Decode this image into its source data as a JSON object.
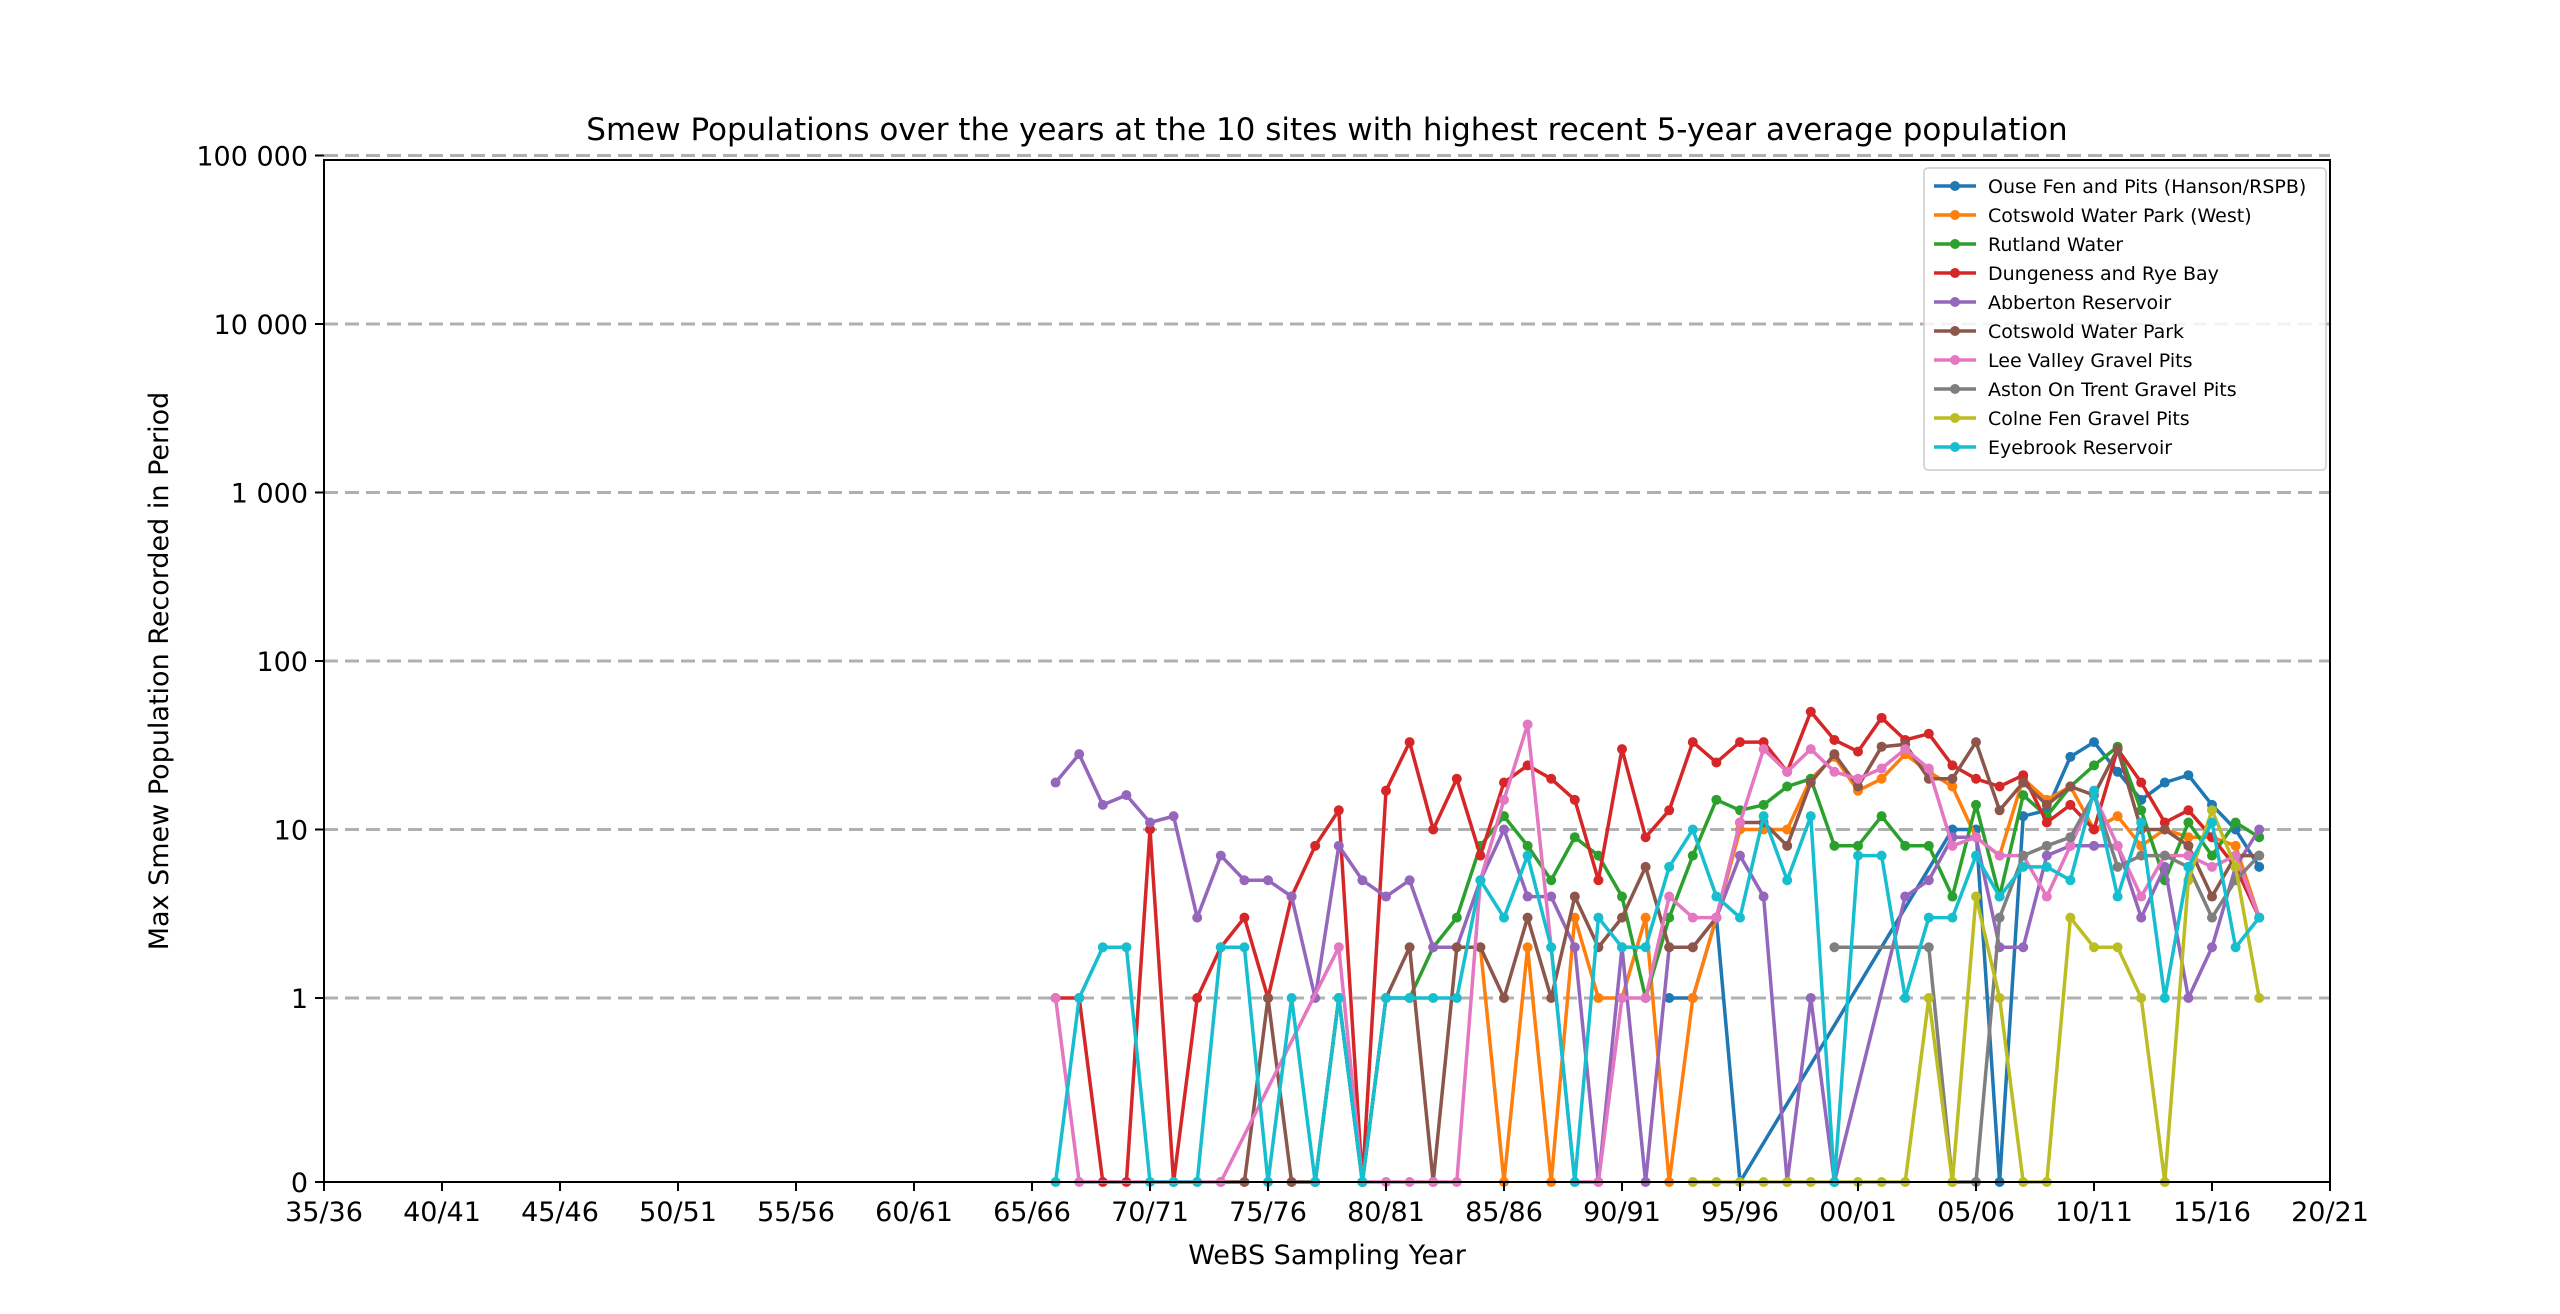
{
  "chart_data": {
    "type": "line",
    "title": "Smew Populations over the years at the 10 sites with highest recent 5-year average population",
    "xlabel": "WeBS Sampling Year",
    "ylabel": "Max Smew Population Recorded in Period",
    "yscale": "symlog",
    "xlim": [
      1935,
      2020
    ],
    "ylim": [
      0,
      100000
    ],
    "xticks": [
      {
        "value": 1935,
        "label": "35/36"
      },
      {
        "value": 1940,
        "label": "40/41"
      },
      {
        "value": 1945,
        "label": "45/46"
      },
      {
        "value": 1950,
        "label": "50/51"
      },
      {
        "value": 1955,
        "label": "55/56"
      },
      {
        "value": 1960,
        "label": "60/61"
      },
      {
        "value": 1965,
        "label": "65/66"
      },
      {
        "value": 1970,
        "label": "70/71"
      },
      {
        "value": 1975,
        "label": "75/76"
      },
      {
        "value": 1980,
        "label": "80/81"
      },
      {
        "value": 1985,
        "label": "85/86"
      },
      {
        "value": 1990,
        "label": "90/91"
      },
      {
        "value": 1995,
        "label": "95/96"
      },
      {
        "value": 2000,
        "label": "00/01"
      },
      {
        "value": 2005,
        "label": "05/06"
      },
      {
        "value": 2010,
        "label": "10/11"
      },
      {
        "value": 2015,
        "label": "15/16"
      },
      {
        "value": 2020,
        "label": "20/21"
      }
    ],
    "yticks": [
      {
        "value": 0,
        "label": "0"
      },
      {
        "value": 1,
        "label": "1"
      },
      {
        "value": 10,
        "label": "10"
      },
      {
        "value": 100,
        "label": "100"
      },
      {
        "value": 1000,
        "label": "1 000"
      },
      {
        "value": 10000,
        "label": "10 000"
      },
      {
        "value": 100000,
        "label": "100 000"
      }
    ],
    "grid": "horizontal dashed",
    "legend_position": "top-right",
    "series": [
      {
        "name": "Ouse Fen and Pits (Hanson/RSPB)",
        "color": "#1f77b4",
        "x": [
          1992,
          1993,
          1994,
          1995,
          2004,
          2005,
          2006,
          2007,
          2008,
          2009,
          2010,
          2011,
          2012,
          2013,
          2014,
          2015,
          2016,
          2017
        ],
        "y": [
          1,
          1,
          3,
          0,
          10,
          10,
          0,
          12,
          13,
          27,
          33,
          22,
          15,
          19,
          21,
          14,
          10,
          6
        ]
      },
      {
        "name": "Cotswold Water Park (West)",
        "color": "#ff7f0e",
        "x": [
          1984,
          1985,
          1986,
          1987,
          1988,
          1989,
          1990,
          1991,
          1992,
          1993,
          1994,
          1995,
          1996,
          1997,
          1998,
          1999,
          2000,
          2001,
          2002,
          2003,
          2004,
          2005,
          2006,
          2007,
          2008,
          2009,
          2010,
          2011,
          2012,
          2013,
          2014,
          2015,
          2016,
          2017
        ],
        "y": [
          2,
          0,
          2,
          0,
          3,
          1,
          1,
          3,
          0,
          1,
          3,
          10,
          10,
          10,
          20,
          27,
          17,
          20,
          28,
          22,
          18,
          9,
          7,
          20,
          15,
          18,
          10,
          12,
          8,
          10,
          9,
          9,
          8,
          3
        ]
      },
      {
        "name": "Rutland Water",
        "color": "#2ca02c",
        "x": [
          1977,
          1978,
          1979,
          1980,
          1981,
          1982,
          1983,
          1984,
          1985,
          1986,
          1987,
          1988,
          1989,
          1990,
          1991,
          1992,
          1993,
          1994,
          1995,
          1996,
          1997,
          1998,
          1999,
          2000,
          2001,
          2002,
          2003,
          2004,
          2005,
          2006,
          2007,
          2008,
          2009,
          2010,
          2011,
          2012,
          2013,
          2014,
          2015,
          2016,
          2017
        ],
        "y": [
          0,
          1,
          0,
          1,
          1,
          2,
          3,
          8,
          12,
          8,
          5,
          9,
          7,
          4,
          1,
          3,
          7,
          15,
          13,
          14,
          18,
          20,
          8,
          8,
          12,
          8,
          8,
          4,
          14,
          4,
          16,
          12,
          18,
          24,
          31,
          13,
          5,
          11,
          7,
          11,
          9
        ]
      },
      {
        "name": "Dungeness and Rye Bay",
        "color": "#d62728",
        "x": [
          1966,
          1967,
          1968,
          1969,
          1970,
          1971,
          1972,
          1973,
          1974,
          1975,
          1976,
          1977,
          1978,
          1979,
          1980,
          1981,
          1982,
          1983,
          1984,
          1985,
          1986,
          1987,
          1988,
          1989,
          1990,
          1991,
          1992,
          1993,
          1994,
          1995,
          1996,
          1997,
          1998,
          1999,
          2000,
          2001,
          2002,
          2003,
          2004,
          2005,
          2006,
          2007,
          2008,
          2009,
          2010,
          2011,
          2012,
          2013,
          2014,
          2015,
          2016,
          2017
        ],
        "y": [
          1,
          1,
          0,
          0,
          10,
          0,
          1,
          2,
          3,
          1,
          4,
          8,
          13,
          0,
          17,
          33,
          10,
          20,
          7,
          19,
          24,
          20,
          15,
          5,
          30,
          9,
          13,
          33,
          25,
          33,
          33,
          22,
          50,
          34,
          29,
          46,
          34,
          37,
          24,
          20,
          18,
          21,
          11,
          14,
          10,
          30,
          19,
          11,
          13,
          9,
          6,
          3
        ]
      },
      {
        "name": "Abberton Reservoir",
        "color": "#9467bd",
        "x": [
          1966,
          1967,
          1968,
          1969,
          1970,
          1971,
          1972,
          1973,
          1974,
          1975,
          1976,
          1977,
          1978,
          1979,
          1980,
          1981,
          1982,
          1983,
          1984,
          1985,
          1986,
          1987,
          1988,
          1989,
          1990,
          1991,
          1992,
          1993,
          1994,
          1995,
          1996,
          1997,
          1998,
          1999,
          2002,
          2003,
          2004,
          2005,
          2006,
          2007,
          2008,
          2009,
          2010,
          2011,
          2012,
          2013,
          2014,
          2015,
          2016,
          2017
        ],
        "y": [
          19,
          28,
          14,
          16,
          11,
          12,
          3,
          7,
          5,
          5,
          4,
          1,
          8,
          5,
          4,
          5,
          2,
          2,
          5,
          10,
          4,
          4,
          2,
          0,
          2,
          0,
          2,
          2,
          3,
          7,
          4,
          0,
          1,
          0,
          4,
          5,
          9,
          9,
          2,
          2,
          7,
          8,
          8,
          8,
          3,
          6,
          1,
          2,
          6,
          10
        ]
      },
      {
        "name": "Cotswold Water Park",
        "color": "#8c564b",
        "x": [
          1973,
          1974,
          1975,
          1976,
          1977,
          1978,
          1979,
          1980,
          1981,
          1982,
          1983,
          1984,
          1985,
          1986,
          1987,
          1988,
          1989,
          1990,
          1991,
          1992,
          1993,
          1994,
          1995,
          1996,
          1997,
          1998,
          1999,
          2000,
          2001,
          2002,
          2003,
          2004,
          2005,
          2006,
          2007,
          2008,
          2009,
          2010,
          2011,
          2012,
          2013,
          2014,
          2015,
          2016,
          2017
        ],
        "y": [
          0,
          0,
          1,
          0,
          0,
          1,
          0,
          1,
          2,
          0,
          2,
          2,
          1,
          3,
          1,
          4,
          2,
          3,
          6,
          2,
          2,
          3,
          11,
          11,
          8,
          19,
          28,
          18,
          31,
          32,
          20,
          20,
          33,
          13,
          19,
          14,
          18,
          16,
          30,
          10,
          10,
          8,
          4,
          7,
          7
        ]
      },
      {
        "name": "Lee Valley Gravel Pits",
        "color": "#e377c2",
        "x": [
          1966,
          1967,
          1972,
          1973,
          1978,
          1979,
          1980,
          1981,
          1982,
          1983,
          1984,
          1985,
          1986,
          1987,
          1988,
          1989,
          1990,
          1991,
          1992,
          1993,
          1994,
          1995,
          1996,
          1997,
          1998,
          1999,
          2000,
          2001,
          2002,
          2003,
          2004,
          2005,
          2006,
          2007,
          2008,
          2009,
          2010,
          2011,
          2012,
          2013,
          2014,
          2015,
          2016,
          2017
        ],
        "y": [
          1,
          0,
          0,
          0,
          2,
          0,
          0,
          0,
          0,
          0,
          5,
          15,
          42,
          2,
          0,
          0,
          1,
          1,
          4,
          3,
          3,
          11,
          30,
          22,
          30,
          22,
          20,
          23,
          30,
          23,
          8,
          9,
          7,
          7,
          4,
          8,
          16,
          8,
          4,
          7,
          7,
          6,
          7,
          3
        ]
      },
      {
        "name": "Aston On Trent Gravel Pits",
        "color": "#7f7f7f",
        "x": [
          1999,
          2003,
          2004,
          2005,
          2006,
          2007,
          2008,
          2009,
          2010,
          2011,
          2012,
          2013,
          2014,
          2015,
          2016,
          2017
        ],
        "y": [
          2,
          2,
          0,
          0,
          3,
          7,
          8,
          9,
          16,
          6,
          7,
          7,
          6,
          3,
          5,
          7
        ]
      },
      {
        "name": "Colne Fen Gravel Pits",
        "color": "#bcbd22",
        "x": [
          1993,
          1994,
          1995,
          1996,
          1997,
          1998,
          1999,
          2000,
          2001,
          2002,
          2003,
          2004,
          2005,
          2006,
          2007,
          2008,
          2009,
          2010,
          2011,
          2012,
          2013,
          2014,
          2015,
          2016,
          2017
        ],
        "y": [
          0,
          0,
          0,
          0,
          0,
          0,
          0,
          0,
          0,
          0,
          1,
          0,
          4,
          1,
          0,
          0,
          3,
          2,
          2,
          1,
          0,
          5,
          13,
          6,
          1
        ]
      },
      {
        "name": "Eyebrook Reservoir",
        "color": "#17becf",
        "x": [
          1966,
          1967,
          1968,
          1969,
          1970,
          1971,
          1972,
          1973,
          1974,
          1975,
          1976,
          1977,
          1978,
          1979,
          1980,
          1981,
          1982,
          1983,
          1984,
          1985,
          1986,
          1987,
          1988,
          1989,
          1990,
          1991,
          1992,
          1993,
          1994,
          1995,
          1996,
          1997,
          1998,
          1999,
          2000,
          2001,
          2002,
          2003,
          2004,
          2005,
          2006,
          2007,
          2008,
          2009,
          2010,
          2011,
          2012,
          2013,
          2014,
          2015,
          2016,
          2017
        ],
        "y": [
          0,
          1,
          2,
          2,
          0,
          0,
          0,
          2,
          2,
          0,
          1,
          0,
          1,
          0,
          1,
          1,
          1,
          1,
          5,
          3,
          7,
          2,
          0,
          3,
          2,
          2,
          6,
          10,
          4,
          3,
          12,
          5,
          12,
          0,
          7,
          7,
          1,
          3,
          3,
          7,
          4,
          6,
          6,
          5,
          17,
          4,
          11,
          1,
          6,
          11,
          2,
          3
        ]
      }
    ]
  }
}
